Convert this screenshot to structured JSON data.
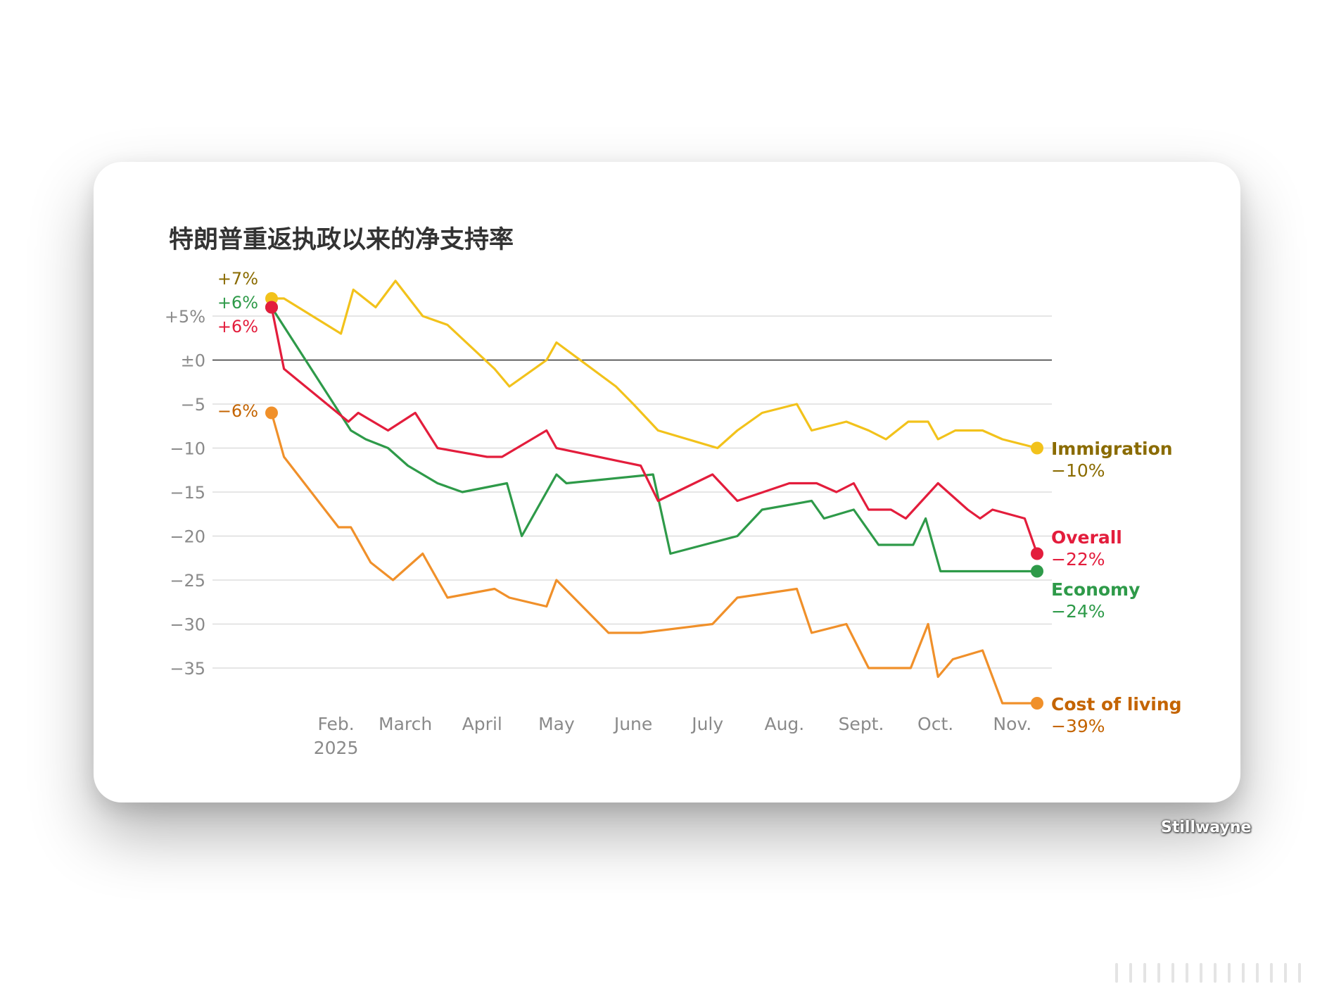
{
  "title": "特朗普重返执政以来的净支持率",
  "watermark": "Stillwayne",
  "colors": {
    "immigration": "#f2c21b",
    "overall": "#e31d3c",
    "economy": "#2e9a49",
    "cost_of_living": "#f0902a",
    "immigration_label": "#8a6b00",
    "cost_label": "#c46400",
    "grid": "#d7d7d7",
    "zero": "#333333"
  },
  "chart_data": {
    "type": "line",
    "ylim": [
      -39,
      7
    ],
    "yticks": [
      5,
      0,
      -5,
      -10,
      -15,
      -20,
      -25,
      -30,
      -35
    ],
    "ytick_labels": [
      "+5%",
      "±0",
      "−5",
      "−10",
      "−15",
      "−20",
      "−25",
      "−30",
      "−35"
    ],
    "xlim": [
      "2025-01-20",
      "2025-11-25"
    ],
    "xticks": [
      {
        "date": "2025-02-15",
        "label": "Feb.",
        "sub": "2025"
      },
      {
        "date": "2025-03-15",
        "label": "March"
      },
      {
        "date": "2025-04-15",
        "label": "April"
      },
      {
        "date": "2025-05-15",
        "label": "May"
      },
      {
        "date": "2025-06-15",
        "label": "June"
      },
      {
        "date": "2025-07-15",
        "label": "July"
      },
      {
        "date": "2025-08-15",
        "label": "Aug."
      },
      {
        "date": "2025-09-15",
        "label": "Sept."
      },
      {
        "date": "2025-10-15",
        "label": "Oct."
      },
      {
        "date": "2025-11-15",
        "label": "Nov."
      }
    ],
    "grid": true,
    "series": [
      {
        "key": "immigration",
        "name": "Immigration",
        "start_label": "+7%",
        "end_label": "−10%",
        "x": [
          "2025-01-20",
          "2025-01-25",
          "2025-02-17",
          "2025-02-22",
          "2025-03-03",
          "2025-03-11",
          "2025-03-22",
          "2025-04-01",
          "2025-04-20",
          "2025-04-26",
          "2025-05-11",
          "2025-05-15",
          "2025-06-08",
          "2025-06-15",
          "2025-06-25",
          "2025-07-19",
          "2025-07-27",
          "2025-08-06",
          "2025-08-20",
          "2025-08-26",
          "2025-09-09",
          "2025-09-18",
          "2025-09-25",
          "2025-10-04",
          "2025-10-12",
          "2025-10-16",
          "2025-10-23",
          "2025-11-03",
          "2025-11-11",
          "2025-11-25"
        ],
        "values": [
          7,
          7,
          3,
          8,
          6,
          9,
          5,
          4,
          -1,
          -3,
          0,
          2,
          -3,
          -5,
          -8,
          -10,
          -8,
          -6,
          -5,
          -8,
          -7,
          -8,
          -9,
          -7,
          -7,
          -9,
          -8,
          -8,
          -9,
          -10
        ]
      },
      {
        "key": "overall",
        "name": "Overall",
        "start_label": "+6%",
        "end_label": "−22%",
        "x": [
          "2025-01-20",
          "2025-01-25",
          "2025-02-20",
          "2025-02-24",
          "2025-03-08",
          "2025-03-19",
          "2025-03-28",
          "2025-04-17",
          "2025-04-23",
          "2025-05-11",
          "2025-05-15",
          "2025-06-18",
          "2025-06-25",
          "2025-07-17",
          "2025-07-27",
          "2025-08-17",
          "2025-08-28",
          "2025-09-05",
          "2025-09-12",
          "2025-09-18",
          "2025-09-27",
          "2025-10-03",
          "2025-10-16",
          "2025-10-28",
          "2025-11-02",
          "2025-11-07",
          "2025-11-20",
          "2025-11-25"
        ],
        "values": [
          6,
          -1,
          -7,
          -6,
          -8,
          -6,
          -10,
          -11,
          -11,
          -8,
          -10,
          -12,
          -16,
          -13,
          -16,
          -14,
          -14,
          -15,
          -14,
          -17,
          -17,
          -18,
          -14,
          -17,
          -18,
          -17,
          -18,
          -22
        ]
      },
      {
        "key": "economy",
        "name": "Economy",
        "start_label": "+6%",
        "end_label": "−24%",
        "x": [
          "2025-01-20",
          "2025-02-21",
          "2025-02-27",
          "2025-03-08",
          "2025-03-16",
          "2025-03-28",
          "2025-04-07",
          "2025-04-25",
          "2025-05-01",
          "2025-05-15",
          "2025-05-19",
          "2025-06-23",
          "2025-06-30",
          "2025-07-27",
          "2025-08-06",
          "2025-08-26",
          "2025-08-31",
          "2025-09-12",
          "2025-09-22",
          "2025-10-06",
          "2025-10-11",
          "2025-10-17",
          "2025-10-25",
          "2025-11-01",
          "2025-11-25"
        ],
        "values": [
          6,
          -8,
          -9,
          -10,
          -12,
          -14,
          -15,
          -14,
          -20,
          -13,
          -14,
          -13,
          -22,
          -20,
          -17,
          -16,
          -18,
          -17,
          -21,
          -21,
          -18,
          -24,
          -24,
          -24,
          -24
        ]
      },
      {
        "key": "cost_of_living",
        "name": "Cost of living",
        "start_label": "−6%",
        "end_label": "−39%",
        "x": [
          "2025-01-20",
          "2025-01-25",
          "2025-02-16",
          "2025-02-21",
          "2025-03-01",
          "2025-03-10",
          "2025-03-22",
          "2025-04-01",
          "2025-04-20",
          "2025-04-26",
          "2025-05-11",
          "2025-05-15",
          "2025-06-05",
          "2025-06-18",
          "2025-07-17",
          "2025-07-27",
          "2025-08-20",
          "2025-08-26",
          "2025-09-09",
          "2025-09-18",
          "2025-10-05",
          "2025-10-12",
          "2025-10-16",
          "2025-10-22",
          "2025-11-03",
          "2025-11-11",
          "2025-11-25"
        ],
        "values": [
          -6,
          -11,
          -19,
          -19,
          -23,
          -25,
          -22,
          -27,
          -26,
          -27,
          -28,
          -25,
          -31,
          -31,
          -30,
          -27,
          -26,
          -31,
          -30,
          -35,
          -35,
          -30,
          -36,
          -34,
          -33,
          -39,
          -39
        ]
      }
    ]
  }
}
